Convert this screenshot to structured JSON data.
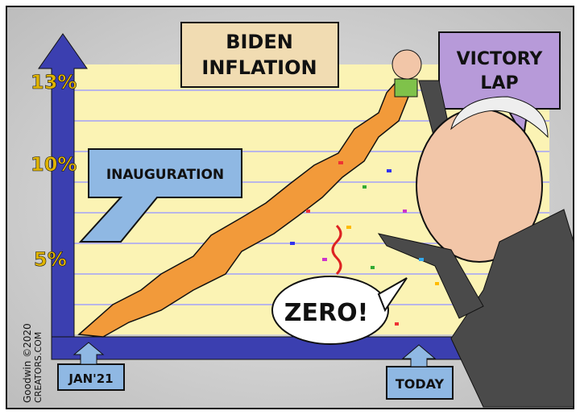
{
  "title_box": {
    "line1": "BIDEN",
    "line2": "INFLATION"
  },
  "victory_box": {
    "line1": "VICTORY",
    "line2": "LAP"
  },
  "inauguration_label": "INAUGURATION",
  "y_ticks": [
    "13%",
    "10%",
    "5%"
  ],
  "x_labels": {
    "start": "JAN'21",
    "end": "TODAY"
  },
  "speech_bubble": "ZERO!",
  "signature": {
    "line1": "Goodwin ©2020",
    "line2": "CREATORS.COM"
  },
  "colors": {
    "background": "#d9d9d9",
    "chart_area": "#fbf3b4",
    "axis": "#3b3fb0",
    "trend": "#f29a3a",
    "label_box": "#8fb8e3",
    "title_box": "#f1dcb2",
    "victory_box": "#b79ad9"
  }
}
